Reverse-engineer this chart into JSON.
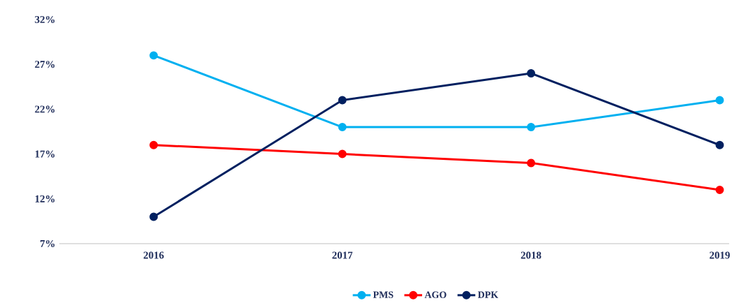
{
  "chart_data": {
    "type": "line",
    "categories": [
      "2016",
      "2017",
      "2018",
      "2019"
    ],
    "series": [
      {
        "name": "PMS",
        "color": "#00b0f0",
        "values": [
          28,
          20,
          20,
          23
        ]
      },
      {
        "name": "AGO",
        "color": "#ff0000",
        "values": [
          18,
          17,
          16,
          13
        ]
      },
      {
        "name": "DPK",
        "color": "#002060",
        "values": [
          10,
          23,
          26,
          18
        ]
      }
    ],
    "ylim": [
      7,
      32
    ],
    "yticks": [
      {
        "value": 7,
        "label": "7%"
      },
      {
        "value": 12,
        "label": "12%"
      },
      {
        "value": 17,
        "label": "17%"
      },
      {
        "value": 22,
        "label": "22%"
      },
      {
        "value": 27,
        "label": "27%"
      },
      {
        "value": 32,
        "label": "32%"
      }
    ],
    "legend": "bottom",
    "marker": "circle",
    "line_style": "solid"
  }
}
